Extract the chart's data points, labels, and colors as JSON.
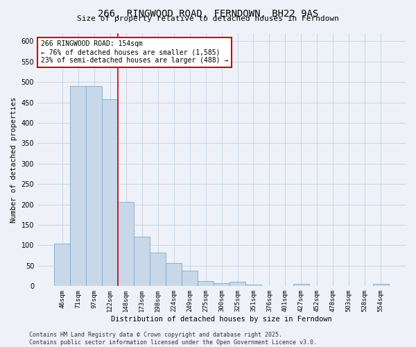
{
  "title": "266, RINGWOOD ROAD, FERNDOWN, BH22 9AS",
  "subtitle": "Size of property relative to detached houses in Ferndown",
  "xlabel": "Distribution of detached houses by size in Ferndown",
  "ylabel": "Number of detached properties",
  "footer": "Contains HM Land Registry data © Crown copyright and database right 2025.\nContains public sector information licensed under the Open Government Licence v3.0.",
  "categories": [
    "46sqm",
    "71sqm",
    "97sqm",
    "122sqm",
    "148sqm",
    "173sqm",
    "198sqm",
    "224sqm",
    "249sqm",
    "275sqm",
    "300sqm",
    "325sqm",
    "351sqm",
    "376sqm",
    "401sqm",
    "427sqm",
    "452sqm",
    "478sqm",
    "503sqm",
    "528sqm",
    "554sqm"
  ],
  "values": [
    105,
    490,
    490,
    458,
    207,
    122,
    82,
    57,
    38,
    13,
    8,
    11,
    4,
    0,
    0,
    5,
    0,
    0,
    0,
    0,
    6
  ],
  "bar_color": "#c8d8e8",
  "bar_edge_color": "#7ba8cc",
  "grid_color": "#c8d4e4",
  "background_color": "#eef2f8",
  "marker_bin_index": 3.5,
  "annotation_text": "266 RINGWOOD ROAD: 154sqm\n← 76% of detached houses are smaller (1,585)\n23% of semi-detached houses are larger (488) →",
  "annotation_box_color": "#ffffff",
  "annotation_box_edge": "#cc0000",
  "marker_line_color": "#cc0000",
  "ylim": [
    0,
    620
  ],
  "yticks": [
    0,
    50,
    100,
    150,
    200,
    250,
    300,
    350,
    400,
    450,
    500,
    550,
    600
  ]
}
